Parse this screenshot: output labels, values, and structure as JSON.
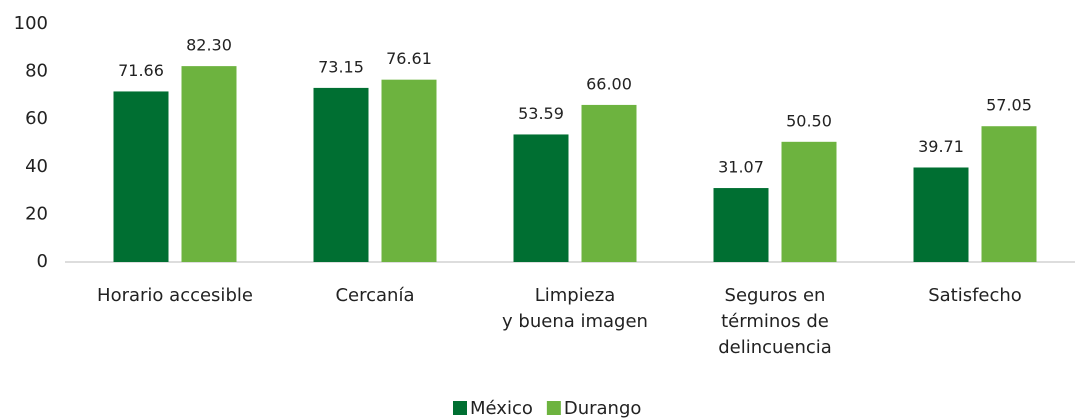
{
  "chart_data": {
    "type": "bar",
    "categories": [
      "Horario accesible",
      "Cercanía",
      "Limpieza\ny buena imagen",
      "Seguros en\ntérminos de\ndelincuencia",
      "Satisfecho"
    ],
    "series": [
      {
        "name": "México",
        "color": "#006f32",
        "values": [
          71.66,
          73.15,
          53.59,
          31.07,
          39.71
        ],
        "value_labels": [
          "71.66",
          "73.15",
          "53.59",
          "31.07",
          "39.71"
        ]
      },
      {
        "name": "Durango",
        "color": "#6db33f",
        "values": [
          82.3,
          76.61,
          66,
          50.5,
          57.05
        ],
        "value_labels": [
          "82.30",
          "76.61",
          "66.00",
          "50.50",
          "57.05"
        ]
      }
    ],
    "ylim": [
      0,
      100
    ],
    "yticks": [
      0,
      20,
      40,
      60,
      80,
      100
    ],
    "legend": "bottom"
  }
}
